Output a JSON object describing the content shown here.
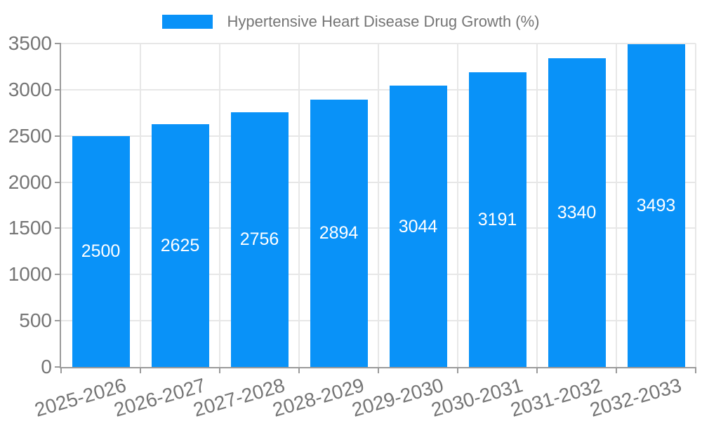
{
  "legend": {
    "label": "Hypertensive Heart Disease Drug Growth (%)"
  },
  "chart_data": {
    "type": "bar",
    "title": "Hypertensive Heart Disease Drug Growth (%)",
    "categories": [
      "2025-2026",
      "2026-2027",
      "2027-2028",
      "2028-2029",
      "2029-2030",
      "2030-2031",
      "2031-2032",
      "2032-2033"
    ],
    "values": [
      2500,
      2625,
      2756,
      2894,
      3044,
      3191,
      3340,
      3493
    ],
    "xlabel": "",
    "ylabel": "",
    "ylim": [
      0,
      3500
    ],
    "yticks": [
      0,
      500,
      1000,
      1500,
      2000,
      2500,
      3000,
      3500
    ],
    "grid": true,
    "legend_position": "top-center",
    "value_labels": "inside-center",
    "colors": {
      "bar": "#0992f8",
      "bar_label_text": "#ffffff",
      "axis_text": "#757575",
      "axis_line": "#9a9a9a",
      "gridline": "#e7e7e7",
      "background": "#ffffff"
    }
  }
}
